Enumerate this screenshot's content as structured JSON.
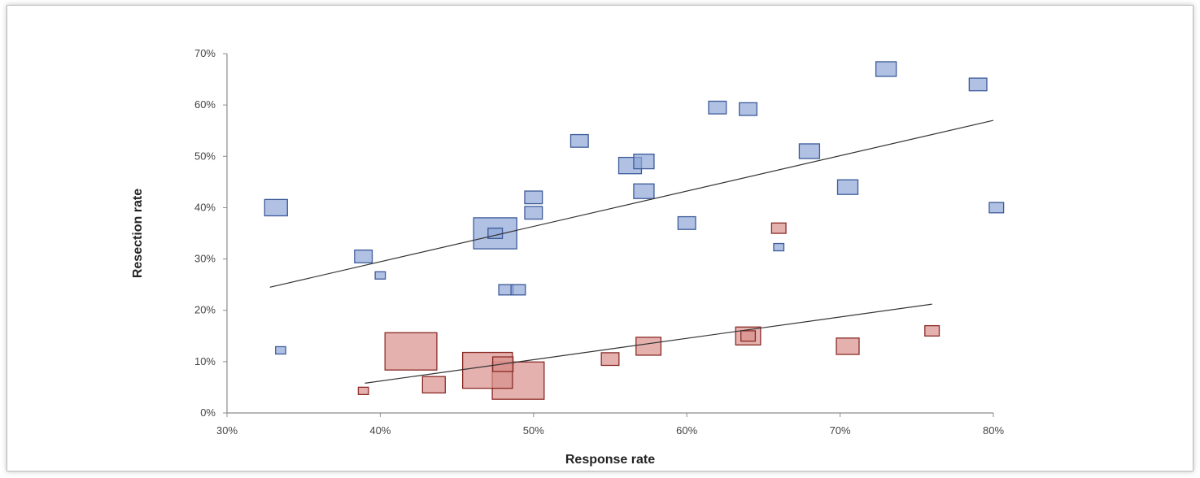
{
  "chart_data": {
    "type": "scatter",
    "xlabel": "Response rate",
    "ylabel": "Resection rate",
    "xlim": [
      30,
      80
    ],
    "ylim": [
      0,
      70
    ],
    "x_ticks": [
      "30%",
      "40%",
      "50%",
      "60%",
      "70%",
      "80%"
    ],
    "y_ticks": [
      "0%",
      "10%",
      "20%",
      "30%",
      "40%",
      "50%",
      "60%",
      "70%"
    ],
    "x_tick_values": [
      30,
      40,
      50,
      60,
      70,
      80
    ],
    "y_tick_values": [
      0,
      10,
      20,
      30,
      40,
      50,
      60,
      70
    ],
    "grid": false,
    "legend": "none",
    "series": [
      {
        "color": "#8fa6d8",
        "stroke": "#3c5a99",
        "points": [
          {
            "x": 33.2,
            "y": 40.0,
            "size": 5
          },
          {
            "x": 38.9,
            "y": 30.5,
            "size": 3
          },
          {
            "x": 40.0,
            "y": 26.8,
            "size": 1
          },
          {
            "x": 33.5,
            "y": 12.2,
            "size": 1
          },
          {
            "x": 47.5,
            "y": 35.0,
            "size": 18
          },
          {
            "x": 47.5,
            "y": 35.0,
            "size": 2
          },
          {
            "x": 48.2,
            "y": 24.0,
            "size": 2
          },
          {
            "x": 49.0,
            "y": 24.0,
            "size": 2
          },
          {
            "x": 50.0,
            "y": 39.0,
            "size": 3
          },
          {
            "x": 50.0,
            "y": 42.0,
            "size": 3
          },
          {
            "x": 53.0,
            "y": 53.0,
            "size": 3
          },
          {
            "x": 56.3,
            "y": 48.2,
            "size": 5
          },
          {
            "x": 57.2,
            "y": 49.0,
            "size": 4
          },
          {
            "x": 57.2,
            "y": 43.2,
            "size": 4
          },
          {
            "x": 60.0,
            "y": 37.0,
            "size": 3
          },
          {
            "x": 62.0,
            "y": 59.5,
            "size": 3
          },
          {
            "x": 64.0,
            "y": 59.2,
            "size": 3
          },
          {
            "x": 66.0,
            "y": 32.3,
            "size": 1
          },
          {
            "x": 68.0,
            "y": 51.0,
            "size": 4
          },
          {
            "x": 70.5,
            "y": 44.0,
            "size": 4
          },
          {
            "x": 73.0,
            "y": 67.0,
            "size": 4
          },
          {
            "x": 79.0,
            "y": 64.0,
            "size": 3
          },
          {
            "x": 80.2,
            "y": 40.0,
            "size": 2
          }
        ],
        "trend": {
          "x": [
            32.8,
            80.0
          ],
          "y": [
            24.5,
            57.0
          ]
        }
      },
      {
        "color": "#d9908c",
        "stroke": "#8a2a26",
        "points": [
          {
            "x": 38.9,
            "y": 4.3,
            "size": 1
          },
          {
            "x": 42.0,
            "y": 12.0,
            "size": 26
          },
          {
            "x": 43.5,
            "y": 5.5,
            "size": 5
          },
          {
            "x": 47.0,
            "y": 8.3,
            "size": 24
          },
          {
            "x": 49.0,
            "y": 6.3,
            "size": 26
          },
          {
            "x": 48.0,
            "y": 9.5,
            "size": 4
          },
          {
            "x": 55.0,
            "y": 10.5,
            "size": 3
          },
          {
            "x": 57.5,
            "y": 13.0,
            "size": 6
          },
          {
            "x": 64.0,
            "y": 15.0,
            "size": 6
          },
          {
            "x": 64.0,
            "y": 15.0,
            "size": 2
          },
          {
            "x": 66.0,
            "y": 36.0,
            "size": 2
          },
          {
            "x": 70.5,
            "y": 13.0,
            "size": 5
          },
          {
            "x": 76.0,
            "y": 16.0,
            "size": 2
          }
        ],
        "trend": {
          "x": [
            39.0,
            76.0
          ],
          "y": [
            5.8,
            21.2
          ]
        }
      }
    ]
  }
}
